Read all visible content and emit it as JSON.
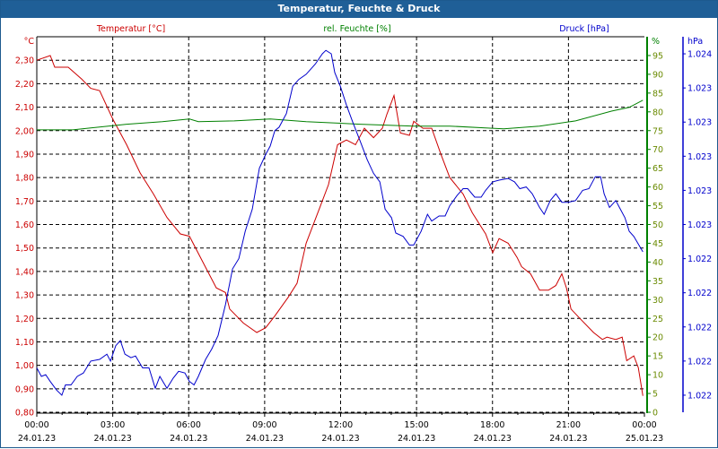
{
  "window": {
    "title": "Temperatur, Feuchte & Druck"
  },
  "chart_data": {
    "type": "line",
    "title": "Temperatur, Feuchte & Druck",
    "x_ticks": [
      {
        "time": "00:00",
        "date": "24.01.23",
        "h": 0
      },
      {
        "time": "03:00",
        "date": "24.01.23",
        "h": 3
      },
      {
        "time": "06:00",
        "date": "24.01.23",
        "h": 6
      },
      {
        "time": "09:00",
        "date": "24.01.23",
        "h": 9
      },
      {
        "time": "12:00",
        "date": "24.01.23",
        "h": 12
      },
      {
        "time": "15:00",
        "date": "24.01.23",
        "h": 15
      },
      {
        "time": "18:00",
        "date": "24.01.23",
        "h": 18
      },
      {
        "time": "21:00",
        "date": "24.01.23",
        "h": 21
      },
      {
        "time": "00:00",
        "date": "25.01.23",
        "h": 24
      }
    ],
    "xlim_hours": [
      0,
      24
    ],
    "grid": true,
    "axes": {
      "temperature": {
        "label": "Temperatur [°C]",
        "unit": "°C",
        "color": "#cc0000",
        "ylim": [
          0.8,
          2.4
        ],
        "ticks": [
          "0,80",
          "0,90",
          "1,00",
          "1,10",
          "1,20",
          "1,30",
          "1,40",
          "1,50",
          "1,60",
          "1,70",
          "1,80",
          "1,90",
          "2,00",
          "2,10",
          "2,20",
          "2,30"
        ]
      },
      "humidity": {
        "label": "rel. Feuchte [%]",
        "unit": "%",
        "color": "#008000",
        "ylim": [
          0,
          100
        ],
        "ticks": [
          "0",
          "5",
          "10",
          "15",
          "20",
          "25",
          "30",
          "35",
          "40",
          "45",
          "50",
          "55",
          "60",
          "65",
          "70",
          "75",
          "80",
          "85",
          "90",
          "95"
        ]
      },
      "pressure": {
        "label": "Druck [hPa]",
        "unit": "hPa",
        "color": "#0000cc",
        "ylim": [
          1.0215,
          1.0237
        ],
        "ticks": [
          {
            "v": 1.0236,
            "t": "1.024"
          },
          {
            "v": 1.0234,
            "t": "1.023"
          },
          {
            "v": 1.0232,
            "t": "1.023"
          },
          {
            "v": 1.023,
            "t": "1.023"
          },
          {
            "v": 1.0228,
            "t": "1.023"
          },
          {
            "v": 1.0226,
            "t": "1.023"
          },
          {
            "v": 1.0224,
            "t": "1.022"
          },
          {
            "v": 1.0222,
            "t": "1.022"
          },
          {
            "v": 1.022,
            "t": "1.022"
          },
          {
            "v": 1.0218,
            "t": "1.022"
          },
          {
            "v": 1.0216,
            "t": "1.022"
          }
        ]
      }
    },
    "series": [
      {
        "name": "Temperatur [°C]",
        "axis": "temperature",
        "color": "#cc0000",
        "points": [
          [
            0,
            2.3
          ],
          [
            0.53,
            2.32
          ],
          [
            0.71,
            2.27
          ],
          [
            1.24,
            2.27
          ],
          [
            1.77,
            2.22
          ],
          [
            2.13,
            2.18
          ],
          [
            2.48,
            2.17
          ],
          [
            3.0,
            2.05
          ],
          [
            3.55,
            1.94
          ],
          [
            4.08,
            1.82
          ],
          [
            4.61,
            1.73
          ],
          [
            5.14,
            1.63
          ],
          [
            5.67,
            1.56
          ],
          [
            6.03,
            1.55
          ],
          [
            6.56,
            1.44
          ],
          [
            7.09,
            1.33
          ],
          [
            7.45,
            1.31
          ],
          [
            7.62,
            1.24
          ],
          [
            8.16,
            1.18
          ],
          [
            8.69,
            1.14
          ],
          [
            9.04,
            1.16
          ],
          [
            9.4,
            1.21
          ],
          [
            9.93,
            1.29
          ],
          [
            10.28,
            1.35
          ],
          [
            10.64,
            1.52
          ],
          [
            11.17,
            1.67
          ],
          [
            11.52,
            1.77
          ],
          [
            11.88,
            1.94
          ],
          [
            12.23,
            1.96
          ],
          [
            12.59,
            1.94
          ],
          [
            12.94,
            2.01
          ],
          [
            13.3,
            1.97
          ],
          [
            13.65,
            2.01
          ],
          [
            13.83,
            2.07
          ],
          [
            14.11,
            2.15
          ],
          [
            14.36,
            1.99
          ],
          [
            14.72,
            1.98
          ],
          [
            14.89,
            2.04
          ],
          [
            15.25,
            2.01
          ],
          [
            15.6,
            2.01
          ],
          [
            15.96,
            1.9
          ],
          [
            16.31,
            1.8
          ],
          [
            16.84,
            1.73
          ],
          [
            17.2,
            1.65
          ],
          [
            17.73,
            1.56
          ],
          [
            18.01,
            1.48
          ],
          [
            18.26,
            1.54
          ],
          [
            18.62,
            1.52
          ],
          [
            18.97,
            1.46
          ],
          [
            19.15,
            1.42
          ],
          [
            19.5,
            1.39
          ],
          [
            19.86,
            1.32
          ],
          [
            20.21,
            1.32
          ],
          [
            20.5,
            1.34
          ],
          [
            20.74,
            1.39
          ],
          [
            20.92,
            1.33
          ],
          [
            21.1,
            1.24
          ],
          [
            21.45,
            1.2
          ],
          [
            21.99,
            1.14
          ],
          [
            22.34,
            1.11
          ],
          [
            22.52,
            1.12
          ],
          [
            22.87,
            1.11
          ],
          [
            23.12,
            1.12
          ],
          [
            23.3,
            1.02
          ],
          [
            23.58,
            1.04
          ],
          [
            23.76,
            0.99
          ],
          [
            23.94,
            0.87
          ]
        ]
      },
      {
        "name": "rel. Feuchte [%]",
        "axis": "humidity",
        "color": "#008000",
        "points": [
          [
            0,
            75.2
          ],
          [
            1.42,
            75.2
          ],
          [
            2.13,
            75.7
          ],
          [
            3.55,
            76.7
          ],
          [
            4.96,
            77.4
          ],
          [
            6.03,
            78.1
          ],
          [
            6.38,
            77.4
          ],
          [
            7.8,
            77.6
          ],
          [
            9.22,
            78.1
          ],
          [
            10.64,
            77.4
          ],
          [
            12.77,
            76.7
          ],
          [
            14.89,
            76.2
          ],
          [
            16.31,
            76.2
          ],
          [
            17.73,
            75.7
          ],
          [
            18.44,
            75.5
          ],
          [
            19.86,
            76.2
          ],
          [
            21.28,
            77.6
          ],
          [
            22.7,
            80.2
          ],
          [
            23.4,
            81.2
          ],
          [
            23.94,
            83.1
          ]
        ]
      },
      {
        "name": "Druck [hPa]",
        "axis": "pressure",
        "color": "#0000cc",
        "points": [
          [
            0,
            1.02176
          ],
          [
            0.18,
            1.02171
          ],
          [
            0.35,
            1.02172
          ],
          [
            0.53,
            1.02168
          ],
          [
            0.78,
            1.02163
          ],
          [
            0.99,
            1.0216
          ],
          [
            1.13,
            1.02166
          ],
          [
            1.35,
            1.02166
          ],
          [
            1.6,
            1.02171
          ],
          [
            1.84,
            1.02173
          ],
          [
            2.13,
            1.0218
          ],
          [
            2.48,
            1.02181
          ],
          [
            2.77,
            1.02184
          ],
          [
            2.91,
            1.0218
          ],
          [
            3.12,
            1.02189
          ],
          [
            3.3,
            1.02192
          ],
          [
            3.48,
            1.02184
          ],
          [
            3.72,
            1.02182
          ],
          [
            3.9,
            1.02183
          ],
          [
            4.18,
            1.02176
          ],
          [
            4.43,
            1.02176
          ],
          [
            4.68,
            1.02164
          ],
          [
            4.86,
            1.02171
          ],
          [
            5.14,
            1.02164
          ],
          [
            5.39,
            1.0217
          ],
          [
            5.6,
            1.02174
          ],
          [
            5.85,
            1.02173
          ],
          [
            6.03,
            1.02168
          ],
          [
            6.21,
            1.02166
          ],
          [
            6.38,
            1.02171
          ],
          [
            6.67,
            1.02181
          ],
          [
            6.91,
            1.02187
          ],
          [
            7.16,
            1.02195
          ],
          [
            7.45,
            1.02213
          ],
          [
            7.73,
            1.02234
          ],
          [
            7.98,
            1.0224
          ],
          [
            8.23,
            1.02256
          ],
          [
            8.51,
            1.02269
          ],
          [
            8.79,
            1.02293
          ],
          [
            9.04,
            1.02301
          ],
          [
            9.22,
            1.02306
          ],
          [
            9.4,
            1.02315
          ],
          [
            9.57,
            1.02317
          ],
          [
            9.86,
            1.02325
          ],
          [
            10.11,
            1.02341
          ],
          [
            10.35,
            1.02345
          ],
          [
            10.64,
            1.02348
          ],
          [
            11.0,
            1.02354
          ],
          [
            11.28,
            1.0236
          ],
          [
            11.42,
            1.02362
          ],
          [
            11.63,
            1.0236
          ],
          [
            11.77,
            1.02349
          ],
          [
            11.99,
            1.02341
          ],
          [
            12.23,
            1.0233
          ],
          [
            12.48,
            1.0232
          ],
          [
            12.77,
            1.02309
          ],
          [
            13.05,
            1.02298
          ],
          [
            13.3,
            1.0229
          ],
          [
            13.55,
            1.02285
          ],
          [
            13.76,
            1.02269
          ],
          [
            14.01,
            1.02264
          ],
          [
            14.18,
            1.02255
          ],
          [
            14.47,
            1.02253
          ],
          [
            14.72,
            1.02248
          ],
          [
            14.89,
            1.02248
          ],
          [
            15.18,
            1.02256
          ],
          [
            15.43,
            1.02266
          ],
          [
            15.6,
            1.02262
          ],
          [
            15.89,
            1.02265
          ],
          [
            16.13,
            1.02265
          ],
          [
            16.31,
            1.02271
          ],
          [
            16.6,
            1.02277
          ],
          [
            16.84,
            1.02281
          ],
          [
            17.02,
            1.02281
          ],
          [
            17.3,
            1.02276
          ],
          [
            17.55,
            1.02276
          ],
          [
            17.73,
            1.0228
          ],
          [
            18.01,
            1.02285
          ],
          [
            18.26,
            1.02286
          ],
          [
            18.62,
            1.02287
          ],
          [
            18.87,
            1.02285
          ],
          [
            19.08,
            1.02281
          ],
          [
            19.33,
            1.02282
          ],
          [
            19.57,
            1.02278
          ],
          [
            19.86,
            1.0227
          ],
          [
            20.04,
            1.02266
          ],
          [
            20.28,
            1.02274
          ],
          [
            20.5,
            1.02278
          ],
          [
            20.74,
            1.02273
          ],
          [
            20.99,
            1.02273
          ],
          [
            21.28,
            1.02274
          ],
          [
            21.56,
            1.0228
          ],
          [
            21.81,
            1.02281
          ],
          [
            22.06,
            1.02288
          ],
          [
            22.27,
            1.02288
          ],
          [
            22.41,
            1.02278
          ],
          [
            22.62,
            1.0227
          ],
          [
            22.87,
            1.02274
          ],
          [
            23.05,
            1.02269
          ],
          [
            23.23,
            1.02264
          ],
          [
            23.4,
            1.02256
          ],
          [
            23.58,
            1.02253
          ],
          [
            23.94,
            1.02244
          ]
        ]
      }
    ]
  }
}
